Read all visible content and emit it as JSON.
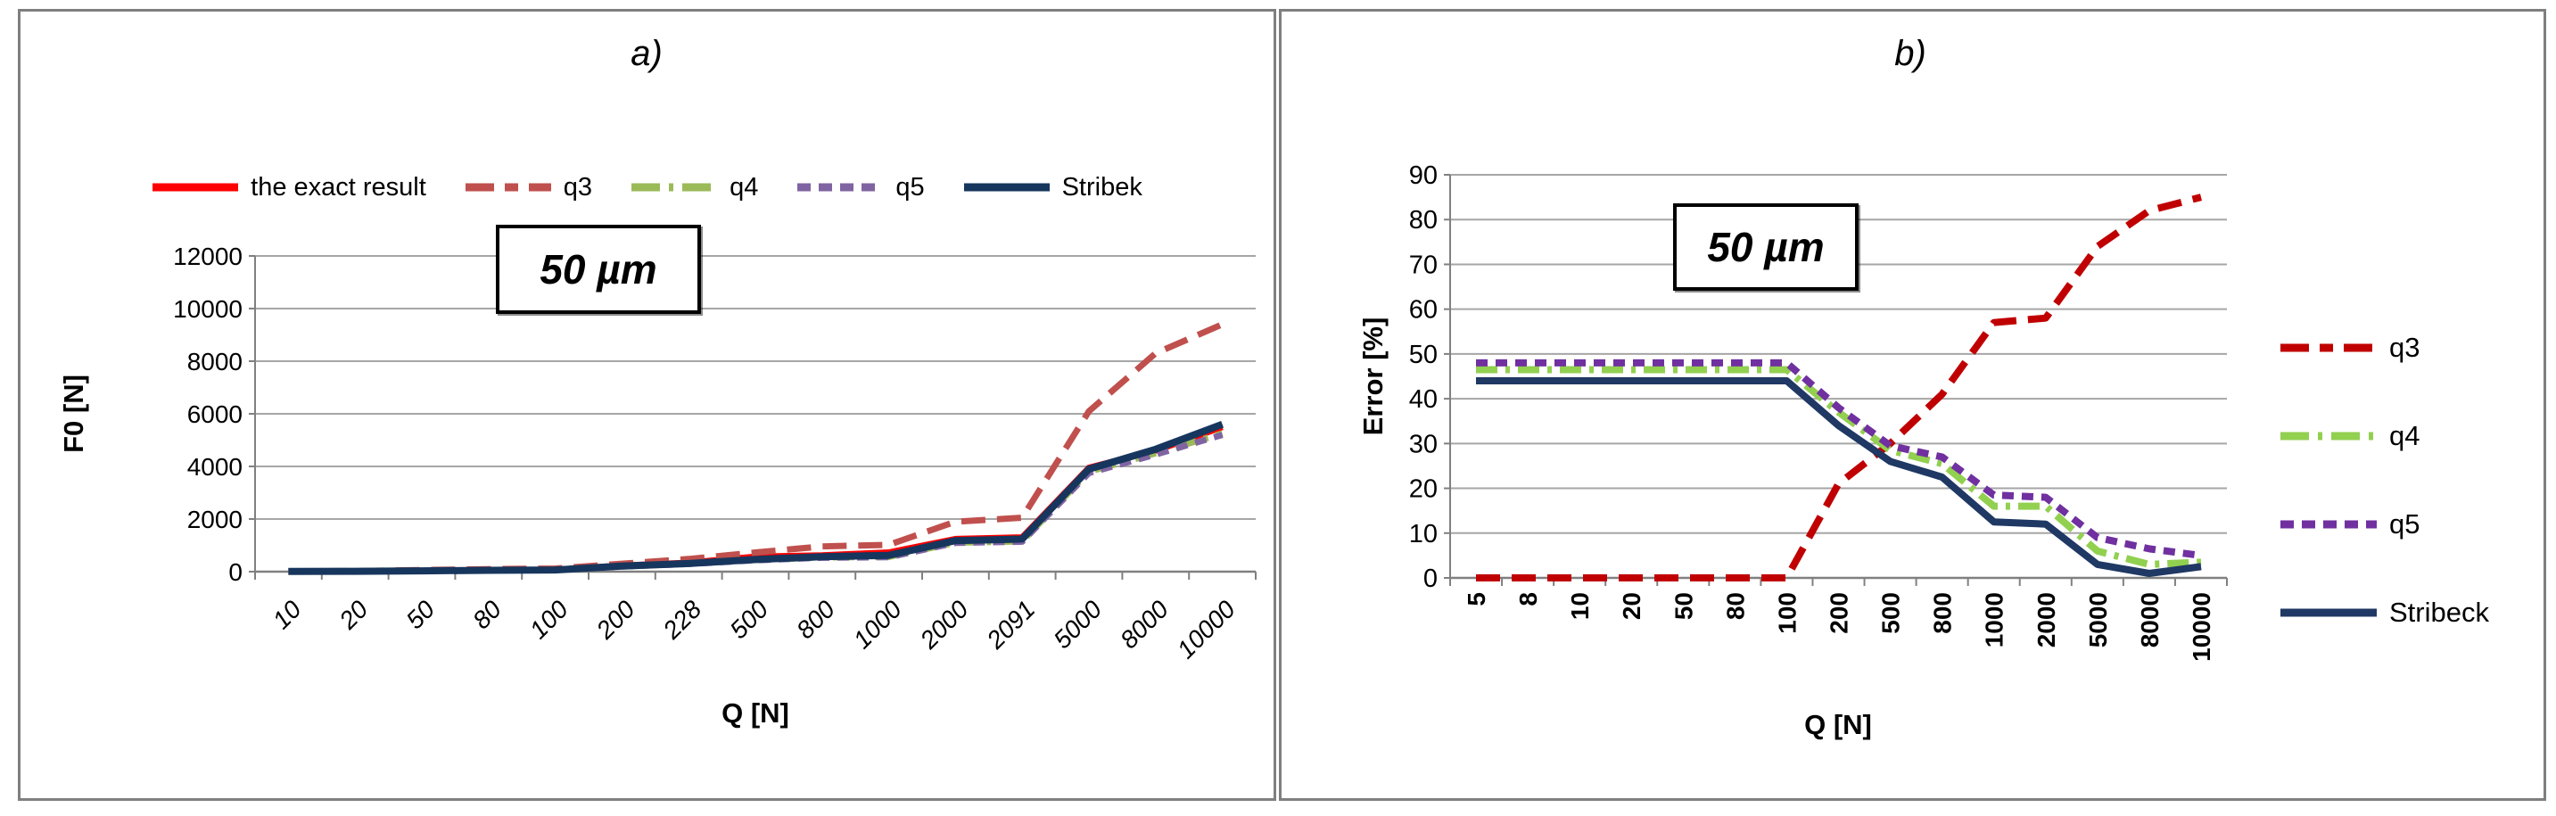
{
  "colors": {
    "gridline": "#A6A6A6",
    "axis": "#808080",
    "panel_border": "#7F7F7F",
    "background": "#FFFFFF"
  },
  "chart_data": [
    {
      "id": "a",
      "type": "line",
      "title": "a)",
      "annotation": "50 µm",
      "xlabel": "Q [N]",
      "ylabel": "F0 [N]",
      "ylim": [
        0,
        12000
      ],
      "ytick_step": 2000,
      "yticks": [
        "0",
        "2000",
        "4000",
        "6000",
        "8000",
        "10000",
        "12000"
      ],
      "grid": true,
      "legend_position": "top",
      "categories": [
        "10",
        "20",
        "50",
        "80",
        "100",
        "200",
        "228",
        "500",
        "800",
        "1000",
        "2000",
        "2091",
        "5000",
        "8000",
        "10000"
      ],
      "series": [
        {
          "name": "the exact result",
          "color": "#FF0000",
          "dash": "solid",
          "width": 7,
          "values": [
            10,
            15,
            35,
            55,
            70,
            230,
            340,
            570,
            620,
            730,
            1240,
            1300,
            3950,
            4600,
            5500
          ]
        },
        {
          "name": "q3",
          "color": "#C0504D",
          "dash": "long-dash",
          "width": 7,
          "values": [
            15,
            25,
            60,
            95,
            120,
            300,
            480,
            730,
            960,
            1020,
            1900,
            2050,
            6100,
            8300,
            9400
          ]
        },
        {
          "name": "q4",
          "color": "#9BBB59",
          "dash": "dash-dot",
          "width": 7,
          "values": [
            8,
            12,
            30,
            48,
            60,
            200,
            300,
            440,
            540,
            560,
            1100,
            1150,
            3800,
            4500,
            5250
          ]
        },
        {
          "name": "q5",
          "color": "#8064A2",
          "dash": "short-dash",
          "width": 7,
          "values": [
            8,
            12,
            30,
            48,
            60,
            195,
            290,
            430,
            530,
            550,
            1090,
            1140,
            3750,
            4450,
            5200
          ]
        },
        {
          "name": "Stribek",
          "color": "#17365D",
          "dash": "solid",
          "width": 8,
          "values": [
            8,
            13,
            32,
            50,
            65,
            210,
            310,
            460,
            570,
            620,
            1180,
            1240,
            3900,
            4650,
            5600
          ]
        }
      ]
    },
    {
      "id": "b",
      "type": "line",
      "title": "b)",
      "annotation": "50 µm",
      "xlabel": "Q [N]",
      "ylabel": "Error [%]",
      "ylim": [
        0,
        90
      ],
      "ytick_step": 10,
      "yticks": [
        "0",
        "10",
        "20",
        "30",
        "40",
        "50",
        "60",
        "70",
        "80",
        "90"
      ],
      "grid": true,
      "legend_position": "right",
      "categories": [
        "5",
        "8",
        "10",
        "20",
        "50",
        "80",
        "100",
        "200",
        "500",
        "800",
        "1000",
        "2000",
        "5000",
        "8000",
        "10000"
      ],
      "series": [
        {
          "name": "q3",
          "color": "#C00000",
          "dash": "long-dash",
          "width": 8,
          "values": [
            0,
            0,
            0,
            0,
            0,
            0,
            0,
            21,
            30,
            41,
            57,
            58,
            74,
            82,
            85
          ]
        },
        {
          "name": "q4",
          "color": "#92D050",
          "dash": "dash-dot",
          "width": 8,
          "values": [
            46.5,
            46.5,
            46.5,
            46.5,
            46.5,
            46.5,
            46.5,
            37,
            28.5,
            25.5,
            16,
            16,
            6,
            3,
            3.5
          ]
        },
        {
          "name": "q5",
          "color": "#7030A0",
          "dash": "short-dash",
          "width": 8,
          "values": [
            48,
            48,
            48,
            48,
            48,
            48,
            48,
            38,
            29.5,
            27,
            18.5,
            18,
            9,
            6.5,
            5
          ]
        },
        {
          "name": "Stribeck",
          "color": "#1F3864",
          "dash": "solid",
          "width": 8,
          "values": [
            44,
            44,
            44,
            44,
            44,
            44,
            44,
            34,
            26,
            22.5,
            12.5,
            12,
            3,
            1,
            2.5
          ]
        }
      ]
    }
  ]
}
